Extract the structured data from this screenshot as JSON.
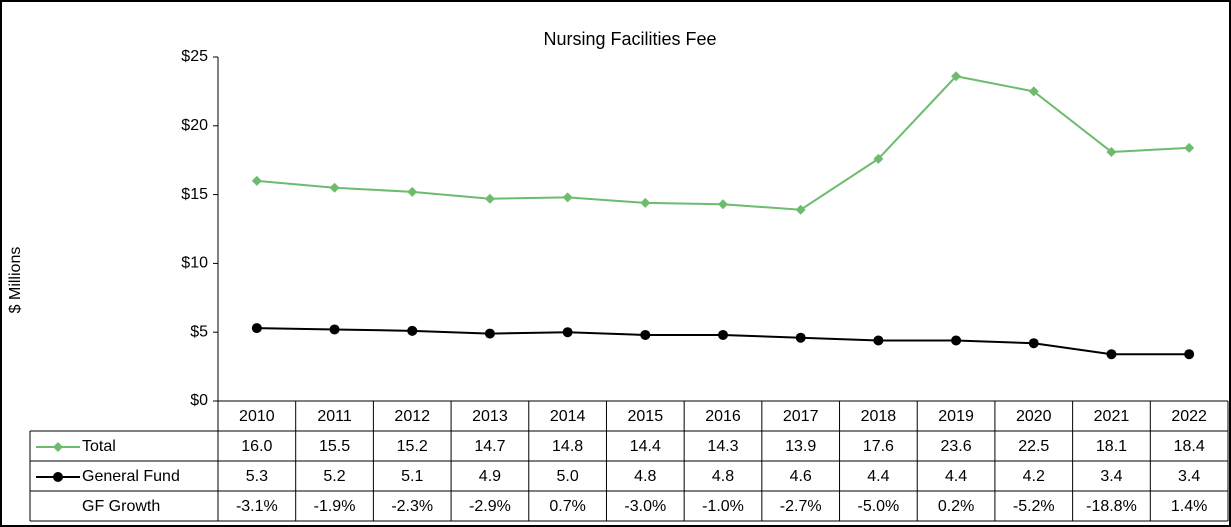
{
  "chart_data": {
    "type": "line",
    "title": "Nursing Facilities Fee",
    "ylabel": "$ Millions",
    "categories": [
      "2010",
      "2011",
      "2012",
      "2013",
      "2014",
      "2015",
      "2016",
      "2017",
      "2018",
      "2019",
      "2020",
      "2021",
      "2022"
    ],
    "series": [
      {
        "name": "Total",
        "color": "#6dbb6d",
        "marker": "diamond",
        "values": [
          16.0,
          15.5,
          15.2,
          14.7,
          14.8,
          14.4,
          14.3,
          13.9,
          17.6,
          23.6,
          22.5,
          18.1,
          18.4
        ],
        "value_labels": [
          "16.0",
          "15.5",
          "15.2",
          "14.7",
          "14.8",
          "14.4",
          "14.3",
          "13.9",
          "17.6",
          "23.6",
          "22.5",
          "18.1",
          "18.4"
        ]
      },
      {
        "name": "General Fund",
        "color": "#000000",
        "marker": "circle",
        "values": [
          5.3,
          5.2,
          5.1,
          4.9,
          5.0,
          4.8,
          4.8,
          4.6,
          4.4,
          4.4,
          4.2,
          3.4,
          3.4
        ],
        "value_labels": [
          "5.3",
          "5.2",
          "5.1",
          "4.9",
          "5.0",
          "4.8",
          "4.8",
          "4.6",
          "4.4",
          "4.4",
          "4.2",
          "3.4",
          "3.4"
        ]
      }
    ],
    "table_rows": [
      {
        "name": "GF Growth",
        "values": [
          -3.1,
          -1.9,
          -2.3,
          -2.9,
          0.7,
          -3.0,
          -1.0,
          -2.7,
          -5.0,
          0.2,
          -5.2,
          -18.8,
          1.4
        ],
        "value_labels": [
          "-3.1%",
          "-1.9%",
          "-2.3%",
          "-2.9%",
          "0.7%",
          "-3.0%",
          "-1.0%",
          "-2.7%",
          "-5.0%",
          "0.2%",
          "-5.2%",
          "-18.8%",
          "1.4%"
        ]
      }
    ],
    "ylim": [
      0,
      25
    ],
    "yticks": [
      {
        "value": 0,
        "label": "$0"
      },
      {
        "value": 5,
        "label": "$5"
      },
      {
        "value": 10,
        "label": "$10"
      },
      {
        "value": 15,
        "label": "$15"
      },
      {
        "value": 20,
        "label": "$20"
      },
      {
        "value": 25,
        "label": "$25"
      }
    ],
    "grid": false
  }
}
